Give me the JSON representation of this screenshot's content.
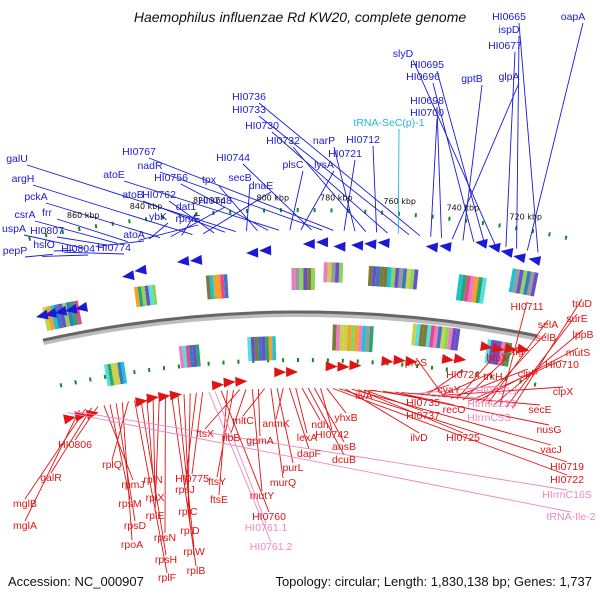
{
  "title": "Haemophilus influenzae Rd KW20, complete genome",
  "footer": {
    "accession": "Accession: NC_000907",
    "summary": "Topology: circular; Length: 1,830,138 bp; Genes: 1,737"
  },
  "colors": {
    "forward": "#1a1ad6",
    "reverse": "#e01414",
    "trna": "#22b6e0",
    "rrna": "#ee88c0",
    "backbone": "#666666",
    "tick": "#138a1f"
  },
  "kbp_ticks": [
    "720 kbp",
    "740 kbp",
    "760 kbp",
    "780 kbp",
    "800 kbp",
    "820 kbp",
    "840 kbp",
    "860 kbp"
  ],
  "forward_labels": [
    {
      "text": "HI0665"
    },
    {
      "text": "oapA"
    },
    {
      "text": "ispD"
    },
    {
      "text": "HI0677"
    },
    {
      "text": "slyD"
    },
    {
      "text": "HI0695"
    },
    {
      "text": "HI0696"
    },
    {
      "text": "gptB"
    },
    {
      "text": "glpA"
    },
    {
      "text": "HI0698"
    },
    {
      "text": "HI0700"
    },
    {
      "text": "HI0736"
    },
    {
      "text": "HI0733"
    },
    {
      "text": "tRNA-SeC(p)-1",
      "kind": "trna"
    },
    {
      "text": "HI0730"
    },
    {
      "text": "HI0712"
    },
    {
      "text": "HI0732"
    },
    {
      "text": "narP"
    },
    {
      "text": "HI0721"
    },
    {
      "text": "HI0767"
    },
    {
      "text": "nadR"
    },
    {
      "text": "HI0744"
    },
    {
      "text": "lysA"
    },
    {
      "text": "plsC"
    },
    {
      "text": "atoE"
    },
    {
      "text": "HI0756"
    },
    {
      "text": "tpx"
    },
    {
      "text": "secB"
    },
    {
      "text": "galU"
    },
    {
      "text": "atoB"
    },
    {
      "text": "HI0762"
    },
    {
      "text": "dnaE"
    },
    {
      "text": "argH"
    },
    {
      "text": "dat1"
    },
    {
      "text": "HI0748"
    },
    {
      "text": "pckA"
    },
    {
      "text": "ybK"
    },
    {
      "text": "rpmE"
    },
    {
      "text": "frr"
    },
    {
      "text": "csrA"
    },
    {
      "text": "HI0807"
    },
    {
      "text": "atoA"
    },
    {
      "text": "uspA"
    },
    {
      "text": "hslO"
    },
    {
      "text": "HI0774"
    },
    {
      "text": "pepP"
    },
    {
      "text": "HI0804"
    }
  ],
  "reverse_labels": [
    {
      "text": "truD"
    },
    {
      "text": "surE"
    },
    {
      "text": "HI0711"
    },
    {
      "text": "lppB"
    },
    {
      "text": "selA"
    },
    {
      "text": "selB"
    },
    {
      "text": "mutS"
    },
    {
      "text": "HI0710"
    },
    {
      "text": "tig"
    },
    {
      "text": "htpX"
    },
    {
      "text": "clpP"
    },
    {
      "text": "proS"
    },
    {
      "text": "trkH"
    },
    {
      "text": "clpX"
    },
    {
      "text": "HI0724"
    },
    {
      "text": "cyaY"
    },
    {
      "text": "HI0729.1",
      "kind": "rrna"
    },
    {
      "text": "HIrrnC23S",
      "kind": "rrna"
    },
    {
      "text": "secE"
    },
    {
      "text": "recO"
    },
    {
      "text": "HIrrnC5S",
      "kind": "rrna"
    },
    {
      "text": "nusG"
    },
    {
      "text": "ilvA"
    },
    {
      "text": "HI0735"
    },
    {
      "text": "HI0737"
    },
    {
      "text": "HI0725"
    },
    {
      "text": "vacJ"
    },
    {
      "text": "ilvD"
    },
    {
      "text": "HI0719"
    },
    {
      "text": "HI0722"
    },
    {
      "text": "yhxB"
    },
    {
      "text": "HI0742"
    },
    {
      "text": "ansB"
    },
    {
      "text": "dcuB"
    },
    {
      "text": "ndh"
    },
    {
      "text": "lexA"
    },
    {
      "text": "dapF"
    },
    {
      "text": "anmK"
    },
    {
      "text": "purL"
    },
    {
      "text": "murQ"
    },
    {
      "text": "mltC"
    },
    {
      "text": "gpmA"
    },
    {
      "text": "mutY"
    },
    {
      "text": "ribB"
    },
    {
      "text": "ftsX"
    },
    {
      "text": "ftsY"
    },
    {
      "text": "ftsE"
    },
    {
      "text": "HI0760"
    },
    {
      "text": "HI0761.1",
      "kind": "rrna"
    },
    {
      "text": "HI0761.2",
      "kind": "rrna"
    },
    {
      "text": "HI0775"
    },
    {
      "text": "rpsJ"
    },
    {
      "text": "rplC"
    },
    {
      "text": "rplD"
    },
    {
      "text": "rplW"
    },
    {
      "text": "rplB"
    },
    {
      "text": "rpsN"
    },
    {
      "text": "rplE"
    },
    {
      "text": "rplX"
    },
    {
      "text": "rplN"
    },
    {
      "text": "rpsH"
    },
    {
      "text": "rplF"
    },
    {
      "text": "rplQ"
    },
    {
      "text": "rpoA"
    },
    {
      "text": "rpsD"
    },
    {
      "text": "rpsM"
    },
    {
      "text": "rpmJ"
    },
    {
      "text": "HI0806"
    },
    {
      "text": "galR"
    },
    {
      "text": "mglB"
    },
    {
      "text": "mglA"
    },
    {
      "text": "HIrrnC16S",
      "kind": "rrna"
    },
    {
      "text": "tRNA-Ile-2",
      "kind": "rrna"
    }
  ]
}
